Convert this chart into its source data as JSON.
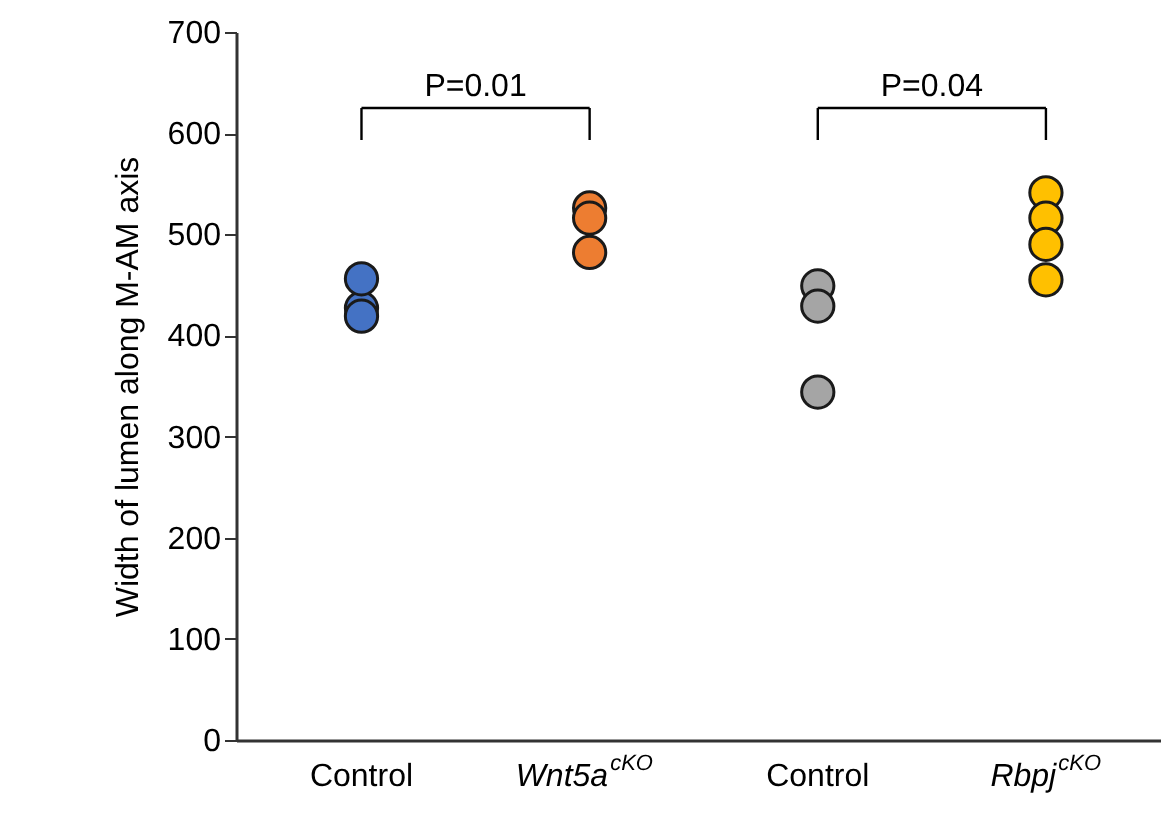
{
  "chart_data": {
    "type": "scatter",
    "categories": [
      "Control",
      "Wnt5a$^{cKO}$",
      "Control",
      "Rbpj$^{cKO}$"
    ],
    "ylabel": "Width of lumen along M-AM axis",
    "ylim": [
      0,
      700
    ],
    "yticks": [
      0,
      100,
      200,
      300,
      400,
      500,
      600,
      700
    ],
    "grid": false,
    "marker": "circle",
    "annotations": [
      "P=0.01",
      "P=0.04"
    ],
    "series": [
      {
        "colors": [
          "#4472c4",
          "#ed7d31",
          "#a5a5a5",
          "#ffc000"
        ],
        "values": [
          427,
          526,
          449,
          541
        ]
      },
      {
        "colors": [
          "#4472c4",
          "#ed7d31",
          "#a5a5a5",
          "#ffc000"
        ],
        "values": [
          456,
          516,
          429,
          516
        ]
      },
      {
        "colors": [
          "#4472c4",
          "#ed7d31",
          "#a5a5a5",
          "#ffc000"
        ],
        "values": [
          419,
          482,
          344,
          490
        ]
      },
      {
        "colors": [
          null,
          null,
          null,
          "#ffc000"
        ],
        "values": [
          null,
          null,
          null,
          455
        ]
      }
    ]
  }
}
